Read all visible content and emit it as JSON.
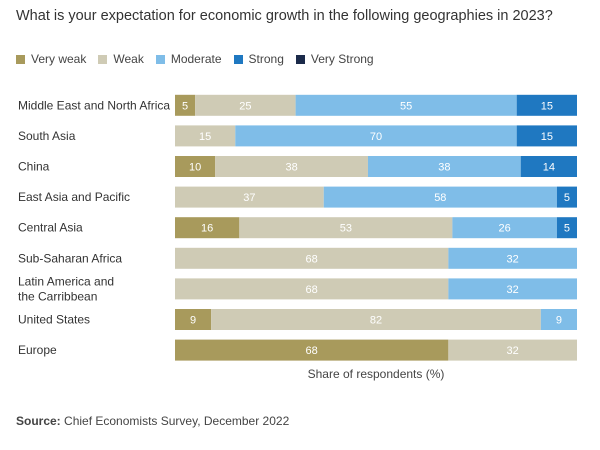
{
  "title": "What is your expectation for economic growth in the following geographies in 2023?",
  "source_label": "Source:",
  "source_text": "Chief Economists Survey, December 2022",
  "chart_data": {
    "type": "bar",
    "orientation": "horizontal",
    "stacked": true,
    "xlabel": "Share of respondents (%)",
    "xlim": [
      0,
      100
    ],
    "legend_position": "top-left",
    "categories": [
      [
        "Middle East and North Africa"
      ],
      [
        "South Asia"
      ],
      [
        "China"
      ],
      [
        "East Asia and Pacific"
      ],
      [
        "Central Asia"
      ],
      [
        "Sub-Saharan Africa"
      ],
      [
        "Latin America and",
        "the Carribbean"
      ],
      [
        "United States"
      ],
      [
        "Europe"
      ]
    ],
    "series": [
      {
        "name": "Very weak",
        "color": "#a89a5c",
        "label_color": "#ffffff",
        "values": [
          5,
          0,
          10,
          0,
          16,
          0,
          0,
          9,
          68
        ]
      },
      {
        "name": "Weak",
        "color": "#cfcbb5",
        "label_color": "#ffffff",
        "values": [
          25,
          15,
          38,
          37,
          53,
          68,
          68,
          82,
          32
        ]
      },
      {
        "name": "Moderate",
        "color": "#7fbde8",
        "label_color": "#ffffff",
        "values": [
          55,
          70,
          38,
          58,
          26,
          32,
          32,
          9,
          0
        ]
      },
      {
        "name": "Strong",
        "color": "#1f78c1",
        "label_color": "#ffffff",
        "values": [
          15,
          15,
          14,
          5,
          5,
          0,
          0,
          0,
          0
        ]
      },
      {
        "name": "Very Strong",
        "color": "#1b2a4a",
        "label_color": "#ffffff",
        "values": [
          0,
          0,
          0,
          0,
          0,
          0,
          0,
          0,
          0
        ]
      }
    ]
  }
}
